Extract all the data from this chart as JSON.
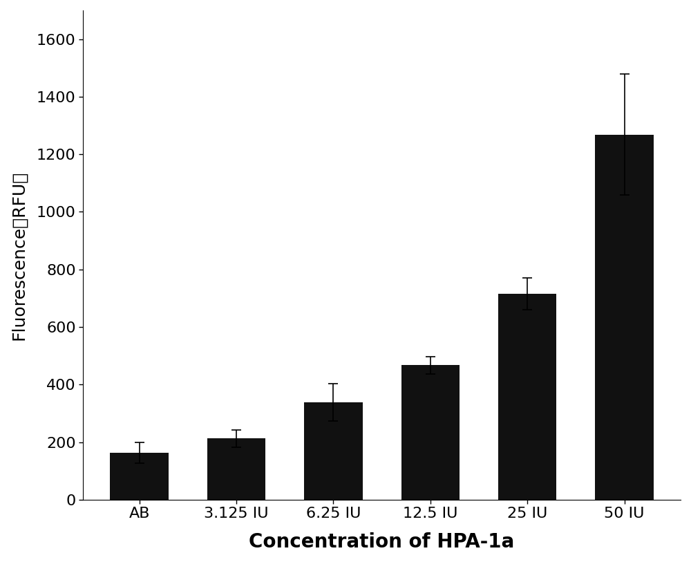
{
  "categories": [
    "AB",
    "3.125 IU",
    "6.25 IU",
    "12.5 IU",
    "25 IU",
    "50 IU"
  ],
  "values": [
    163,
    213,
    338,
    468,
    715,
    1268
  ],
  "errors": [
    35,
    30,
    65,
    30,
    55,
    210
  ],
  "bar_color": "#111111",
  "xlabel": "Concentration of HPA-1a",
  "ylabel": "Fluorescence（RFU）",
  "ylim": [
    0,
    1700
  ],
  "yticks": [
    0,
    200,
    400,
    600,
    800,
    1000,
    1200,
    1400,
    1600
  ],
  "background_color": "#ffffff",
  "xlabel_fontsize": 20,
  "ylabel_fontsize": 18,
  "tick_fontsize": 16,
  "bar_width": 0.6,
  "capsize": 5
}
